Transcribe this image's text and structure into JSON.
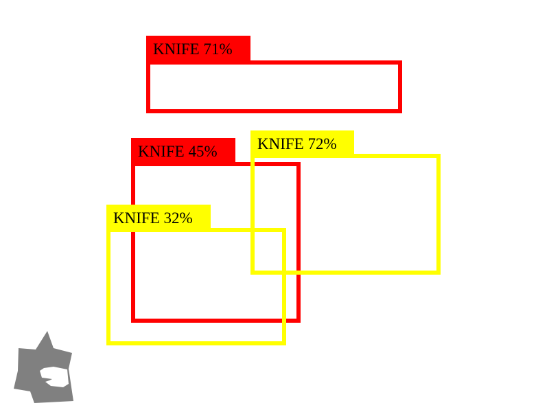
{
  "colors": {
    "background": "#ffffff",
    "red": "#ff0000",
    "yellow": "#ffff00",
    "label_text": "#000000",
    "logo": "#808080"
  },
  "detections": [
    {
      "label": "KNIFE 71%",
      "color": "red"
    },
    {
      "label": "KNIFE 45%",
      "color": "red"
    },
    {
      "label": "KNIFE 72%",
      "color": "yellow"
    },
    {
      "label": "KNIFE 32%",
      "color": "yellow"
    }
  ],
  "logo": {
    "icon": "gray-star-logo-icon"
  }
}
